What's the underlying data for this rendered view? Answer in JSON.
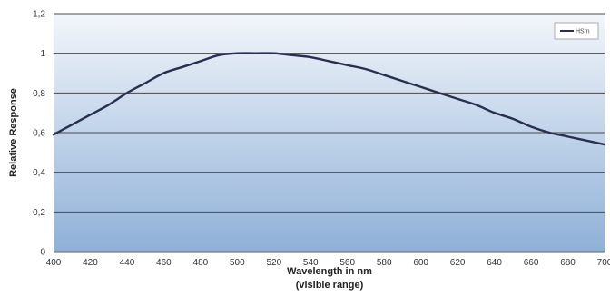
{
  "chart_data": {
    "type": "line",
    "xlabel": "Wavelength in nm",
    "xlabel_note": "(visible range)",
    "ylabel": "Relative Response",
    "xlim": [
      400,
      700
    ],
    "ylim": [
      0,
      1.2
    ],
    "x_ticks": [
      "400",
      "420",
      "440",
      "460",
      "480",
      "500",
      "520",
      "540",
      "560",
      "580",
      "600",
      "620",
      "640",
      "660",
      "680",
      "700"
    ],
    "y_ticks": [
      "0",
      "0,2",
      "0,4",
      "0,6",
      "0,8",
      "1",
      "1,2"
    ],
    "grid": true,
    "legend_position": "top-right",
    "series": [
      {
        "name": "HSm",
        "color": "#2b2f4f",
        "x": [
          400,
          410,
          420,
          430,
          440,
          450,
          460,
          470,
          480,
          490,
          500,
          510,
          520,
          530,
          540,
          550,
          560,
          570,
          580,
          590,
          600,
          610,
          620,
          630,
          640,
          650,
          660,
          670,
          680,
          690,
          700
        ],
        "y": [
          0.59,
          0.64,
          0.69,
          0.74,
          0.8,
          0.85,
          0.9,
          0.93,
          0.96,
          0.99,
          1.0,
          1.0,
          1.0,
          0.99,
          0.98,
          0.96,
          0.94,
          0.92,
          0.89,
          0.86,
          0.83,
          0.8,
          0.77,
          0.74,
          0.7,
          0.67,
          0.63,
          0.6,
          0.58,
          0.56,
          0.54
        ]
      }
    ]
  }
}
